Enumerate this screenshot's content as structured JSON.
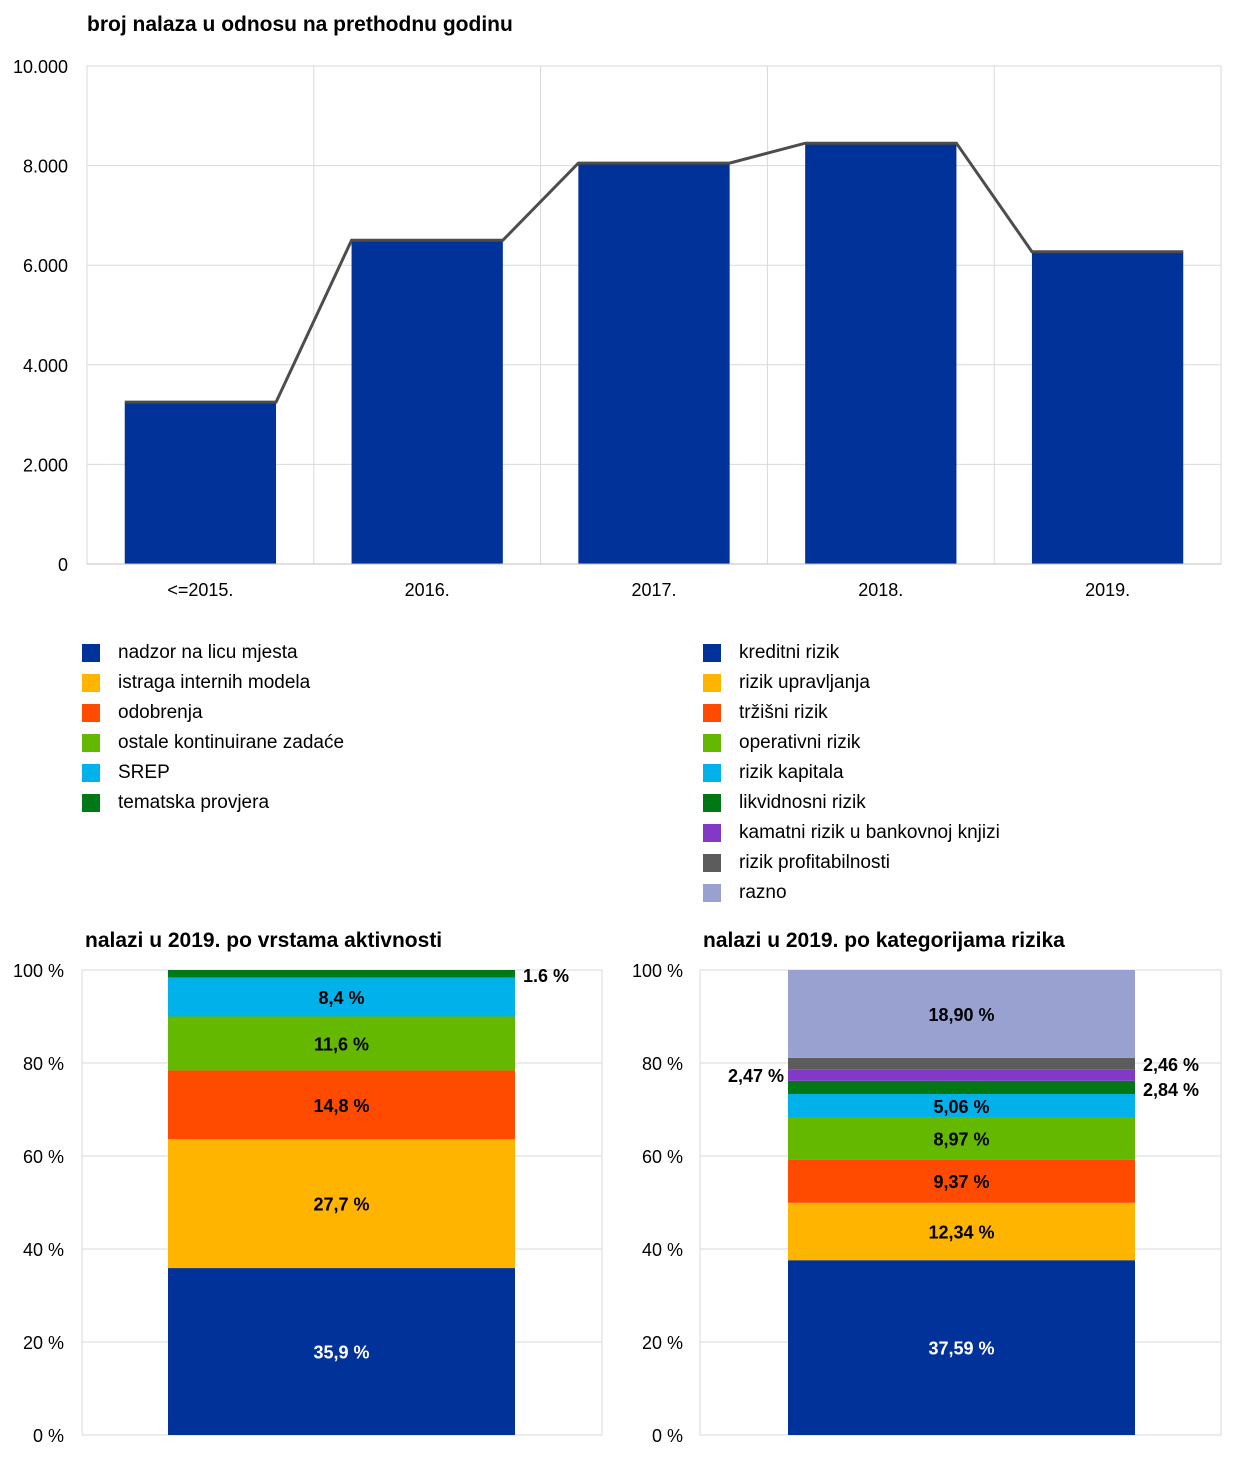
{
  "colors": {
    "nadzor": "#003299",
    "istraga": "#FFB400",
    "odobrenja": "#FF4B00",
    "ostale": "#65B800",
    "srep": "#00B1EA",
    "tematska": "#007816",
    "kamatni": "#8139C6",
    "profitabilnost": "#5C5C5C",
    "razno": "#98A1D0",
    "line": "#4D4D4D",
    "grid": "#D9D9D9"
  },
  "legend_activity": [
    {
      "label": "nadzor na licu mjesta",
      "color": "#003299"
    },
    {
      "label": "istraga internih modela",
      "color": "#FFB400"
    },
    {
      "label": "odobrenja",
      "color": "#FF4B00"
    },
    {
      "label": "ostale kontinuirane zadaće",
      "color": "#65B800"
    },
    {
      "label": "SREP",
      "color": "#00B1EA"
    },
    {
      "label": "tematska provjera",
      "color": "#007816"
    }
  ],
  "legend_risk": [
    {
      "label": "kreditni rizik",
      "color": "#003299"
    },
    {
      "label": "rizik upravljanja",
      "color": "#FFB400"
    },
    {
      "label": "tržišni rizik",
      "color": "#FF4B00"
    },
    {
      "label": "operativni rizik",
      "color": "#65B800"
    },
    {
      "label": "rizik kapitala",
      "color": "#00B1EA"
    },
    {
      "label": "likvidnosni rizik",
      "color": "#007816"
    },
    {
      "label": "kamatni rizik u bankovnoj knjizi",
      "color": "#8139C6"
    },
    {
      "label": "rizik profitabilnosti",
      "color": "#5C5C5C"
    },
    {
      "label": "razno",
      "color": "#98A1D0"
    }
  ],
  "chart_data": [
    {
      "type": "bar",
      "title": "broj nalaza u odnosu na prethodnu godinu",
      "categories": [
        "<=2015.",
        "2016.",
        "2017.",
        "2018.",
        "2019."
      ],
      "values": [
        3250,
        6500,
        8050,
        8450,
        6270
      ],
      "line_series": [
        3250,
        6500,
        8050,
        8450,
        6270
      ],
      "ylim": [
        0,
        10000
      ],
      "yticks": [
        0,
        2000,
        4000,
        6000,
        8000,
        10000
      ],
      "ytick_labels": [
        "0",
        "2.000",
        "4.000",
        "6.000",
        "8.000",
        "10.000"
      ],
      "grid": true
    },
    {
      "type": "bar",
      "title": "nalazi u 2019. po vrstama aktivnosti",
      "stacked": true,
      "ylim": [
        0,
        100
      ],
      "ytick_labels": [
        "0 %",
        "20 %",
        "40 %",
        "60 %",
        "80 %",
        "100 %"
      ],
      "grid": true,
      "segments": [
        {
          "name": "nadzor na licu mjesta",
          "value": 35.9,
          "label": "35,9 %",
          "color": "#003299",
          "label_color": "#ffffff"
        },
        {
          "name": "istraga internih modela",
          "value": 27.7,
          "label": "27,7 %",
          "color": "#FFB400",
          "label_color": "#000000"
        },
        {
          "name": "odobrenja",
          "value": 14.8,
          "label": "14,8 %",
          "color": "#FF4B00",
          "label_color": "#000000"
        },
        {
          "name": "ostale kontinuirane zadaće",
          "value": 11.6,
          "label": "11,6 %",
          "color": "#65B800",
          "label_color": "#000000"
        },
        {
          "name": "SREP",
          "value": 8.4,
          "label": "8,4 %",
          "color": "#00B1EA",
          "label_color": "#000000"
        },
        {
          "name": "tematska provjera",
          "value": 1.6,
          "label": "1.6 %",
          "color": "#007816",
          "label_color": "#000000",
          "label_outside": "right"
        }
      ]
    },
    {
      "type": "bar",
      "title": "nalazi u 2019. po kategorijama rizika",
      "stacked": true,
      "ylim": [
        0,
        100
      ],
      "ytick_labels": [
        "0 %",
        "20 %",
        "40 %",
        "60 %",
        "80 %",
        "100 %"
      ],
      "grid": true,
      "segments": [
        {
          "name": "kreditni rizik",
          "value": 37.59,
          "label": "37,59 %",
          "color": "#003299",
          "label_color": "#ffffff"
        },
        {
          "name": "rizik upravljanja",
          "value": 12.34,
          "label": "12,34 %",
          "color": "#FFB400",
          "label_color": "#000000"
        },
        {
          "name": "tržišni rizik",
          "value": 9.37,
          "label": "9,37 %",
          "color": "#FF4B00",
          "label_color": "#000000"
        },
        {
          "name": "operativni rizik",
          "value": 8.97,
          "label": "8,97 %",
          "color": "#65B800",
          "label_color": "#000000"
        },
        {
          "name": "rizik kapitala",
          "value": 5.06,
          "label": "5,06 %",
          "color": "#00B1EA",
          "label_color": "#000000"
        },
        {
          "name": "likvidnosni rizik",
          "value": 2.84,
          "label": "2,84 %",
          "color": "#007816",
          "label_color": "#000000",
          "label_outside": "right"
        },
        {
          "name": "kamatni rizik u bankovnoj knjizi",
          "value": 2.47,
          "label": "2,47 %",
          "color": "#8139C6",
          "label_color": "#000000",
          "label_outside": "left"
        },
        {
          "name": "rizik profitabilnosti",
          "value": 2.46,
          "label": "2,46 %",
          "color": "#5C5C5C",
          "label_color": "#000000",
          "label_outside": "right"
        },
        {
          "name": "razno",
          "value": 18.9,
          "label": "18,90 %",
          "color": "#98A1D0",
          "label_color": "#000000"
        }
      ]
    }
  ]
}
